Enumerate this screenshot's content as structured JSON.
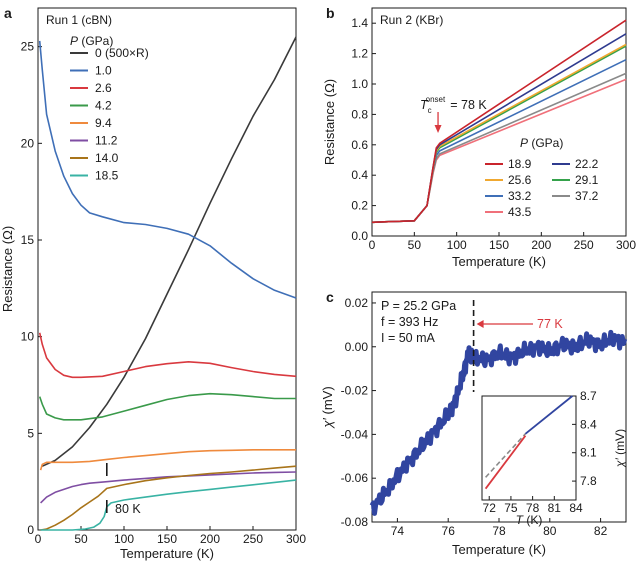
{
  "chart_data": [
    {
      "panel": "a",
      "type": "line",
      "title": "Run 1 (cBN)",
      "xlabel": "Temperature (K)",
      "ylabel": "Resistance (Ω)",
      "xlim": [
        0,
        300
      ],
      "ylim": [
        0,
        27
      ],
      "xticks": [
        0,
        50,
        100,
        150,
        200,
        250,
        300
      ],
      "yticks": [
        0,
        5,
        10,
        15,
        20,
        25
      ],
      "legend_title": "P (GPa)",
      "annotation": "80 K",
      "annotation_T": 80,
      "series": [
        {
          "name": "0 (500×R)",
          "color": "#3a3a3a",
          "x": [
            5,
            20,
            40,
            60,
            80,
            100,
            125,
            150,
            175,
            200,
            225,
            250,
            275,
            300
          ],
          "y": [
            3.3,
            3.6,
            4.3,
            5.3,
            6.5,
            7.9,
            9.9,
            12.2,
            14.5,
            16.9,
            19.2,
            21.4,
            23.3,
            25.5
          ]
        },
        {
          "name": "1.0",
          "color": "#3f6fb7",
          "x": [
            2,
            5,
            10,
            20,
            30,
            40,
            50,
            60,
            75,
            100,
            125,
            150,
            175,
            200,
            225,
            250,
            275,
            300
          ],
          "y": [
            25.3,
            23.8,
            21.5,
            19.6,
            18.3,
            17.4,
            16.8,
            16.4,
            16.2,
            15.9,
            15.8,
            15.6,
            15.3,
            14.7,
            13.8,
            13.0,
            12.4,
            12.0
          ]
        },
        {
          "name": "2.6",
          "color": "#d9393f",
          "x": [
            2,
            5,
            10,
            20,
            30,
            40,
            50,
            75,
            100,
            125,
            150,
            175,
            200,
            225,
            250,
            275,
            300
          ],
          "y": [
            10.2,
            9.6,
            8.9,
            8.3,
            8.0,
            7.9,
            7.9,
            7.95,
            8.2,
            8.45,
            8.6,
            8.7,
            8.62,
            8.4,
            8.2,
            8.05,
            7.95
          ]
        },
        {
          "name": "4.2",
          "color": "#3a9a4a",
          "x": [
            2,
            5,
            10,
            20,
            30,
            40,
            50,
            75,
            100,
            125,
            150,
            175,
            200,
            225,
            250,
            275,
            300
          ],
          "y": [
            6.9,
            6.5,
            6.0,
            5.8,
            5.7,
            5.7,
            5.7,
            5.85,
            6.15,
            6.45,
            6.75,
            6.95,
            7.05,
            7.0,
            6.9,
            6.8,
            6.8
          ]
        },
        {
          "name": "9.4",
          "color": "#ef8a3d",
          "x": [
            3,
            5,
            10,
            20,
            40,
            60,
            80,
            100,
            125,
            150,
            175,
            200,
            225,
            250,
            275,
            300
          ],
          "y": [
            3.1,
            3.4,
            3.5,
            3.5,
            3.5,
            3.55,
            3.65,
            3.75,
            3.85,
            3.95,
            4.05,
            4.1,
            4.12,
            4.15,
            4.15,
            4.15
          ]
        },
        {
          "name": "11.2",
          "color": "#7f4ea3",
          "x": [
            3,
            10,
            20,
            30,
            40,
            50,
            60,
            70,
            80,
            100,
            125,
            150,
            175,
            200,
            225,
            250,
            275,
            300
          ],
          "y": [
            1.4,
            1.7,
            1.95,
            2.1,
            2.25,
            2.35,
            2.42,
            2.46,
            2.5,
            2.58,
            2.67,
            2.75,
            2.8,
            2.85,
            2.9,
            2.95,
            2.98,
            3.0
          ]
        },
        {
          "name": "14.0",
          "color": "#a8741a",
          "x": [
            3,
            10,
            20,
            30,
            40,
            50,
            60,
            70,
            75,
            80,
            100,
            125,
            150,
            175,
            200,
            225,
            250,
            275,
            300
          ],
          "y": [
            0.0,
            0.05,
            0.25,
            0.5,
            0.8,
            1.15,
            1.45,
            1.75,
            1.95,
            2.15,
            2.35,
            2.55,
            2.7,
            2.82,
            2.92,
            3.0,
            3.1,
            3.2,
            3.3
          ]
        },
        {
          "name": "18.5",
          "color": "#39b3a4",
          "x": [
            3,
            20,
            40,
            55,
            65,
            72,
            77,
            80,
            85,
            100,
            125,
            150,
            175,
            200,
            225,
            250,
            275,
            300
          ],
          "y": [
            0.0,
            0.0,
            0.0,
            0.05,
            0.15,
            0.35,
            0.7,
            1.2,
            1.4,
            1.55,
            1.7,
            1.85,
            1.98,
            2.1,
            2.22,
            2.34,
            2.46,
            2.58
          ]
        }
      ]
    },
    {
      "panel": "b",
      "type": "line",
      "title": "Run 2 (KBr)",
      "xlabel": "Temperature (K)",
      "ylabel": "Resistance (Ω)",
      "xlim": [
        0,
        300
      ],
      "ylim": [
        0,
        1.5
      ],
      "xticks": [
        0,
        50,
        100,
        150,
        200,
        250,
        300
      ],
      "yticks": [
        0.0,
        0.2,
        0.4,
        0.6,
        0.8,
        1.0,
        1.2,
        1.4
      ],
      "legend_title": "P (GPa)",
      "onset_label": "T",
      "onset_sub": "c",
      "onset_sup": "onset",
      "onset_value": "= 78 K",
      "onset_T": 78,
      "series": [
        {
          "name": "18.9",
          "color": "#c9242c",
          "x": [
            0,
            50,
            65,
            72,
            76,
            80,
            300
          ],
          "y": [
            0.09,
            0.1,
            0.2,
            0.45,
            0.58,
            0.61,
            1.42
          ]
        },
        {
          "name": "22.2",
          "color": "#2f3b8f",
          "x": [
            0,
            50,
            65,
            72,
            76,
            80,
            300
          ],
          "y": [
            0.09,
            0.1,
            0.2,
            0.45,
            0.57,
            0.6,
            1.33
          ]
        },
        {
          "name": "25.6",
          "color": "#f0a830",
          "x": [
            0,
            50,
            65,
            72,
            76,
            80,
            300
          ],
          "y": [
            0.09,
            0.1,
            0.2,
            0.44,
            0.56,
            0.59,
            1.26
          ]
        },
        {
          "name": "29.1",
          "color": "#35a24b",
          "x": [
            0,
            50,
            65,
            72,
            76,
            80,
            300
          ],
          "y": [
            0.09,
            0.1,
            0.2,
            0.44,
            0.55,
            0.58,
            1.25
          ]
        },
        {
          "name": "33.2",
          "color": "#3f6fb7",
          "x": [
            0,
            50,
            65,
            72,
            76,
            80,
            300
          ],
          "y": [
            0.09,
            0.1,
            0.2,
            0.43,
            0.53,
            0.56,
            1.16
          ]
        },
        {
          "name": "37.2",
          "color": "#8a8a8a",
          "x": [
            0,
            50,
            65,
            72,
            76,
            80,
            300
          ],
          "y": [
            0.09,
            0.1,
            0.2,
            0.42,
            0.51,
            0.54,
            1.07
          ]
        },
        {
          "name": "43.5",
          "color": "#f0707a",
          "x": [
            0,
            50,
            65,
            72,
            76,
            80,
            300
          ],
          "y": [
            0.09,
            0.1,
            0.2,
            0.41,
            0.5,
            0.53,
            1.03
          ]
        }
      ]
    },
    {
      "panel": "c",
      "type": "scatter",
      "xlabel": "Temperature (K)",
      "ylabel_main": "χ′",
      "ylabel_unit": " (mV)",
      "xlim": [
        73,
        83
      ],
      "ylim": [
        -0.08,
        0.025
      ],
      "xticks": [
        74,
        76,
        78,
        80,
        82
      ],
      "yticks": [
        -0.08,
        -0.06,
        -0.04,
        -0.02,
        0.0,
        0.02
      ],
      "color": "#3145a0",
      "params": [
        {
          "label": "P = 25.2 GPa"
        },
        {
          "label": "f = 393    Hz"
        },
        {
          "label": "I = 50      mA"
        }
      ],
      "arrow_label": "77 K",
      "arrow_T": 77,
      "x": [
        73.0,
        73.5,
        74.0,
        74.5,
        75.0,
        75.5,
        76.0,
        76.3,
        76.6,
        76.8,
        77.0,
        77.5,
        78.0,
        78.5,
        79.0,
        79.5,
        80.0,
        80.5,
        81.0,
        81.5,
        82.0,
        82.5,
        83.0
      ],
      "y": [
        -0.074,
        -0.067,
        -0.059,
        -0.052,
        -0.045,
        -0.038,
        -0.031,
        -0.024,
        -0.012,
        -0.003,
        -0.005,
        -0.006,
        -0.003,
        -0.005,
        -0.002,
        0.0,
        -0.002,
        0.001,
        0.0,
        0.003,
        0.001,
        0.004,
        0.002
      ],
      "inset": {
        "xlabel": "T (K)",
        "ylabel_main": "χ′",
        "ylabel_unit": " (mV)",
        "xlim": [
          71,
          84
        ],
        "ylim": [
          7.6,
          8.7
        ],
        "xticks": [
          72,
          75,
          78,
          81,
          84
        ],
        "yticks": [
          7.8,
          8.1,
          8.4,
          8.7
        ],
        "red_line": {
          "color": "#d9393f",
          "x": [
            71.5,
            77.0
          ],
          "y": [
            7.72,
            8.28
          ]
        },
        "dash_line": {
          "color": "#8a8a8a",
          "x": [
            71.5,
            77.0
          ],
          "y": [
            7.84,
            8.3
          ]
        },
        "data_line": {
          "color": "#3145a0",
          "x": [
            77.0,
            83.5
          ],
          "y": [
            8.3,
            8.7
          ]
        }
      }
    }
  ]
}
